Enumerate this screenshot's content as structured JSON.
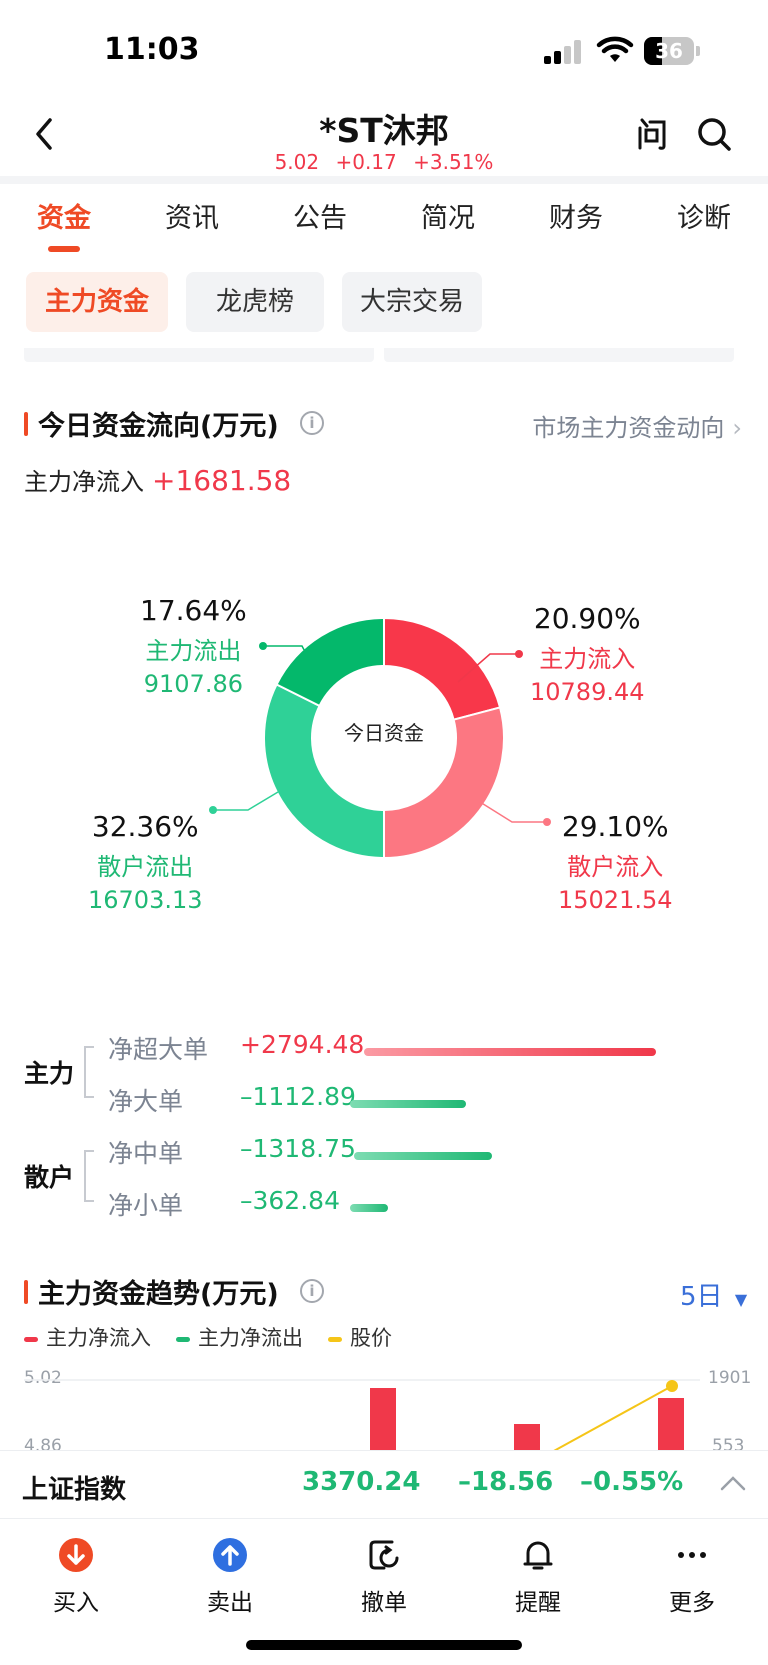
{
  "status_bar": {
    "time": "11:03",
    "battery": "36"
  },
  "header": {
    "title": "*ST沐邦",
    "price": "5.02",
    "change": "+0.17",
    "change_pct": "+3.51%"
  },
  "tabs": [
    "资金",
    "资讯",
    "公告",
    "简况",
    "财务",
    "诊断"
  ],
  "active_tab": "资金",
  "subtabs": [
    "主力资金",
    "龙虎榜",
    "大宗交易"
  ],
  "flow_section": {
    "title": "今日资金流向(万元)",
    "link": "市场主力资金动向",
    "netflow_label": "主力净流入",
    "netflow_value": "+1681.58",
    "donut_center": "今日资金",
    "slices": [
      {
        "name": "主力流入",
        "pct": "20.90%",
        "value": "10789.44",
        "color": "#f8374a"
      },
      {
        "name": "散户流入",
        "pct": "29.10%",
        "value": "15021.54",
        "color": "#fc7782"
      },
      {
        "name": "散户流出",
        "pct": "32.36%",
        "value": "16703.13",
        "color": "#2fd197"
      },
      {
        "name": "主力流出",
        "pct": "17.64%",
        "value": "9107.86",
        "color": "#04b86b"
      }
    ]
  },
  "breakdown": {
    "groups": [
      {
        "label": "主力",
        "rows": [
          {
            "name": "净超大单",
            "value": "+2794.48",
            "amount": 2794.48
          },
          {
            "name": "净大单",
            "value": "–1112.89",
            "amount": -1112.89
          }
        ]
      },
      {
        "label": "散户",
        "rows": [
          {
            "name": "净中单",
            "value": "–1318.75",
            "amount": -1318.75
          },
          {
            "name": "净小单",
            "value": "–362.84",
            "amount": -362.84
          }
        ]
      }
    ]
  },
  "trend_section": {
    "title": "主力资金趋势(万元)",
    "period": "5日",
    "legend": [
      {
        "label": "主力净流入",
        "color": "#f0384a"
      },
      {
        "label": "主力净流出",
        "color": "#1fb874"
      },
      {
        "label": "股价",
        "color": "#f5c518"
      }
    ],
    "y_left": [
      "5.02",
      "4.86"
    ],
    "y_right": [
      "1901",
      "553"
    ]
  },
  "index_bar": {
    "name": "上证指数",
    "value": "3370.24",
    "change": "–18.56",
    "change_pct": "–0.55%"
  },
  "bottom_nav": [
    {
      "label": "买入",
      "icon": "buy-icon"
    },
    {
      "label": "卖出",
      "icon": "sell-icon"
    },
    {
      "label": "撤单",
      "icon": "cancel-order-icon"
    },
    {
      "label": "提醒",
      "icon": "bell-icon"
    },
    {
      "label": "更多",
      "icon": "more-icon"
    }
  ]
}
